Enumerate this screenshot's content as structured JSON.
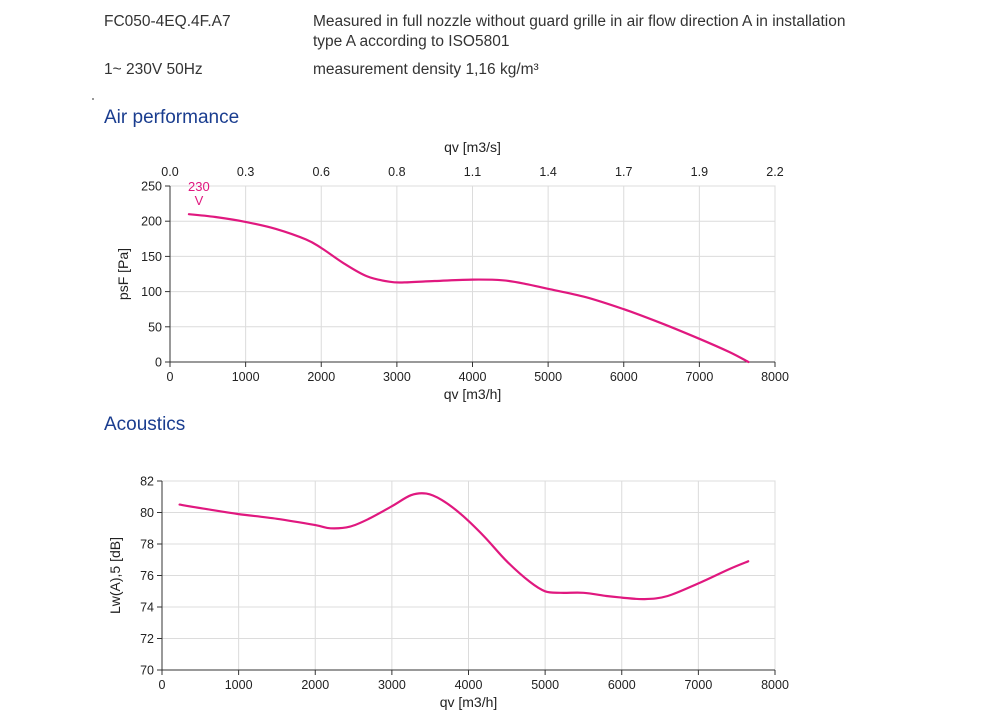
{
  "header": {
    "model": "FC050-4EQ.4F.A7",
    "supply": "1~ 230V 50Hz",
    "note_line1": "Measured in full nozzle without guard grille in air flow direction A in installation",
    "note_line2": "type A according to ISO5801",
    "density": "measurement density 1,16 kg/m³"
  },
  "sections": {
    "air_title": "Air performance",
    "acoustics_title": "Acoustics"
  },
  "chart_data": [
    {
      "type": "line",
      "title": "Air performance",
      "xlabel": "qv [m3/h]",
      "ylabel": "psF [Pa]",
      "x2label": "qv [m3/s]",
      "xlim": [
        0,
        8000
      ],
      "ylim": [
        0,
        250
      ],
      "xticks": [
        "0",
        "1000",
        "2000",
        "3000",
        "4000",
        "5000",
        "6000",
        "7000",
        "8000"
      ],
      "yticks": [
        "0",
        "50",
        "100",
        "150",
        "200",
        "250"
      ],
      "x2ticks": [
        "0.0",
        "0.3",
        "0.6",
        "0.8",
        "1.1",
        "1.4",
        "1.7",
        "1.9",
        "2.2"
      ],
      "grid": true,
      "series": [
        {
          "name": "230 V",
          "color": "#e0187f",
          "x": [
            250,
            600,
            1000,
            1400,
            1800,
            2000,
            2300,
            2600,
            2900,
            3100,
            3500,
            4000,
            4400,
            4700,
            5000,
            5500,
            6000,
            6500,
            7000,
            7400,
            7650
          ],
          "y": [
            210,
            206,
            199,
            189,
            174,
            162,
            140,
            122,
            114,
            113,
            115,
            117,
            116,
            111,
            104,
            92,
            75,
            55,
            33,
            14,
            0
          ]
        }
      ]
    },
    {
      "type": "line",
      "title": "Acoustics",
      "xlabel": "qv [m3/h]",
      "ylabel": "Lw(A),5 [dB]",
      "xlim": [
        0,
        8000
      ],
      "ylim": [
        70,
        82
      ],
      "xticks": [
        "0",
        "1000",
        "2000",
        "3000",
        "4000",
        "5000",
        "6000",
        "7000",
        "8000"
      ],
      "yticks": [
        "70",
        "72",
        "74",
        "76",
        "78",
        "80",
        "82"
      ],
      "grid": true,
      "series": [
        {
          "color": "#e0187f",
          "x": [
            230,
            600,
            1000,
            1500,
            2000,
            2200,
            2450,
            2700,
            3000,
            3250,
            3450,
            3650,
            3900,
            4200,
            4500,
            4800,
            5000,
            5200,
            5500,
            5800,
            6000,
            6300,
            6600,
            7000,
            7400,
            7650
          ],
          "y": [
            80.5,
            80.2,
            79.9,
            79.6,
            79.2,
            79.0,
            79.1,
            79.6,
            80.4,
            81.1,
            81.2,
            80.8,
            79.9,
            78.5,
            76.9,
            75.6,
            75.0,
            74.9,
            74.9,
            74.7,
            74.6,
            74.5,
            74.7,
            75.5,
            76.4,
            76.9
          ]
        }
      ]
    }
  ]
}
